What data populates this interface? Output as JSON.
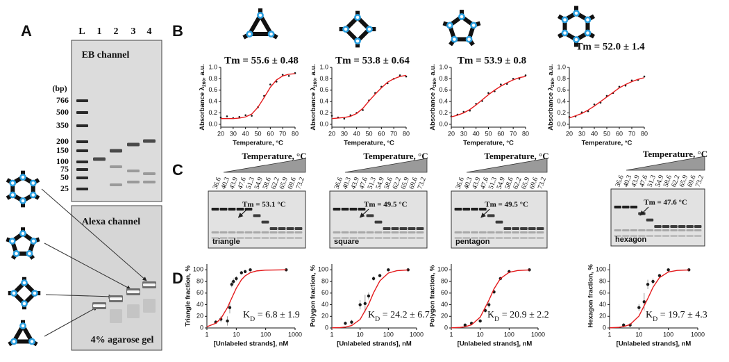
{
  "panel_labels": [
    "A",
    "B",
    "C",
    "D"
  ],
  "gel_a": {
    "lanes": [
      "L",
      "1",
      "2",
      "3",
      "4"
    ],
    "unit": "(bp)",
    "ladder": [
      766,
      500,
      350,
      200,
      150,
      100,
      75,
      50,
      25
    ],
    "top_label": "EB channel",
    "bottom_label": "Alexa channel",
    "footer": "4% agarose gel"
  },
  "chart_data": [
    {
      "type": "scatter",
      "title": "Tm = 55.6 ± 0.48",
      "x_label": "Temperature, °C",
      "y_label": [
        "Absorbance λ",
        "260",
        ", a.u."
      ],
      "xlim": [
        20,
        80
      ],
      "xticks": [
        20,
        30,
        40,
        50,
        60,
        70,
        80
      ],
      "ylim": [
        -0.05,
        1.0
      ],
      "yticks": [
        {
          "value": 0,
          "label": "0.0"
        },
        {
          "value": 0.2,
          "label": "0.2"
        },
        {
          "value": 0.4,
          "label": "0.4"
        },
        {
          "value": 0.6,
          "label": "0.6"
        },
        {
          "value": 0.8,
          "label": "0.8"
        },
        {
          "value": 1,
          "label": "1.0"
        }
      ],
      "x": [
        20,
        25,
        30,
        35,
        40,
        45,
        50,
        55,
        60,
        65,
        70,
        75,
        80
      ],
      "series": [
        {
          "color": "#1a1a1a",
          "style": "points",
          "values": [
            0.12,
            0.14,
            0.11,
            0.13,
            0.16,
            0.15,
            0.3,
            0.5,
            0.7,
            0.75,
            0.87,
            0.85,
            0.9
          ]
        },
        {
          "color": "#e41a1c",
          "style": "line",
          "values": [
            0.1,
            0.1,
            0.1,
            0.11,
            0.13,
            0.18,
            0.3,
            0.47,
            0.65,
            0.78,
            0.85,
            0.88,
            0.89
          ]
        }
      ]
    },
    {
      "type": "scatter",
      "title": "Tm = 53.8 ± 0.64",
      "x_label": "Temperature, °C",
      "y_label": [
        "Absorbance λ",
        "260",
        ", a.u."
      ],
      "xlim": [
        20,
        80
      ],
      "xticks": [
        20,
        30,
        40,
        50,
        60,
        70,
        80
      ],
      "ylim": [
        -0.05,
        1.0
      ],
      "yticks": [
        {
          "value": 0,
          "label": "0.0"
        },
        {
          "value": 0.2,
          "label": "0.2"
        },
        {
          "value": 0.4,
          "label": "0.4"
        },
        {
          "value": 0.6,
          "label": "0.6"
        },
        {
          "value": 0.8,
          "label": "0.8"
        },
        {
          "value": 1,
          "label": "1.0"
        }
      ],
      "x": [
        20,
        25,
        30,
        35,
        40,
        45,
        50,
        55,
        60,
        65,
        70,
        75,
        80
      ],
      "series": [
        {
          "color": "#1a1a1a",
          "style": "points",
          "values": [
            0.15,
            0.12,
            0.1,
            0.16,
            0.2,
            0.25,
            0.42,
            0.55,
            0.66,
            0.72,
            0.8,
            0.86,
            0.84
          ]
        },
        {
          "color": "#e41a1c",
          "style": "line",
          "values": [
            0.1,
            0.11,
            0.12,
            0.14,
            0.19,
            0.28,
            0.41,
            0.53,
            0.64,
            0.74,
            0.8,
            0.84,
            0.86
          ]
        }
      ]
    },
    {
      "type": "scatter",
      "title": "Tm = 53.9 ± 0.8",
      "x_label": "Temperature, °C",
      "y_label": [
        "Absorbance λ",
        "260",
        ", a.u."
      ],
      "xlim": [
        20,
        80
      ],
      "xticks": [
        20,
        30,
        40,
        50,
        60,
        70,
        80
      ],
      "ylim": [
        -0.05,
        1.0
      ],
      "yticks": [
        {
          "value": 0,
          "label": "0.0"
        },
        {
          "value": 0.2,
          "label": "0.2"
        },
        {
          "value": 0.4,
          "label": "0.4"
        },
        {
          "value": 0.6,
          "label": "0.6"
        },
        {
          "value": 0.8,
          "label": "0.8"
        },
        {
          "value": 1,
          "label": "1.0"
        }
      ],
      "x": [
        20,
        25,
        30,
        35,
        40,
        45,
        50,
        55,
        60,
        65,
        70,
        75,
        80
      ],
      "series": [
        {
          "color": "#1a1a1a",
          "style": "points",
          "values": [
            0.14,
            0.17,
            0.22,
            0.24,
            0.36,
            0.41,
            0.55,
            0.58,
            0.7,
            0.71,
            0.8,
            0.8,
            0.86
          ]
        },
        {
          "color": "#e41a1c",
          "style": "line",
          "values": [
            0.13,
            0.16,
            0.2,
            0.26,
            0.34,
            0.43,
            0.52,
            0.6,
            0.67,
            0.73,
            0.78,
            0.82,
            0.84
          ]
        }
      ]
    },
    {
      "type": "scatter",
      "title": "Tm = 52.0 ± 1.4",
      "x_label": "Temperature, °C",
      "y_label": [
        "Absorbance λ",
        "260",
        ", a.u."
      ],
      "xlim": [
        20,
        80
      ],
      "xticks": [
        20,
        30,
        40,
        50,
        60,
        70,
        80
      ],
      "ylim": [
        -0.05,
        1.0
      ],
      "yticks": [
        {
          "value": 0,
          "label": "0.0"
        },
        {
          "value": 0.2,
          "label": "0.2"
        },
        {
          "value": 0.4,
          "label": "0.4"
        },
        {
          "value": 0.6,
          "label": "0.6"
        },
        {
          "value": 0.8,
          "label": "0.8"
        },
        {
          "value": 1,
          "label": "1.0"
        }
      ],
      "x": [
        20,
        25,
        30,
        35,
        40,
        45,
        50,
        55,
        60,
        65,
        70,
        75,
        80
      ],
      "series": [
        {
          "color": "#1a1a1a",
          "style": "points",
          "values": [
            0.13,
            0.14,
            0.21,
            0.23,
            0.35,
            0.38,
            0.5,
            0.55,
            0.66,
            0.68,
            0.77,
            0.78,
            0.84
          ]
        },
        {
          "color": "#e41a1c",
          "style": "line",
          "values": [
            0.11,
            0.15,
            0.19,
            0.25,
            0.32,
            0.4,
            0.48,
            0.56,
            0.64,
            0.7,
            0.75,
            0.79,
            0.82
          ]
        }
      ]
    },
    {
      "type": "scatter",
      "log_x": true,
      "annotation": [
        "K",
        "D",
        " = 6.8 ± 1.9"
      ],
      "x_label": "[Unlabeled strands], nM",
      "y_label": "Triangle fraction, %",
      "xlim": [
        1,
        1000
      ],
      "xticks": [
        1,
        10,
        100,
        1000
      ],
      "ylim": [
        0,
        110
      ],
      "yticks": [
        0,
        20,
        40,
        60,
        80,
        100
      ],
      "series": [
        {
          "color": "#1a1a1a",
          "style": "points",
          "x": [
            2,
            3,
            5,
            6,
            7,
            8,
            10,
            15,
            20,
            30,
            500
          ],
          "values": [
            10,
            15,
            12,
            35,
            75,
            80,
            85,
            95,
            97,
            100,
            100
          ],
          "errors": [
            3,
            5,
            8,
            10,
            5,
            5,
            4,
            3,
            2,
            1,
            0
          ]
        },
        {
          "color": "#e41a1c",
          "style": "line",
          "x": [
            1,
            2,
            3,
            5,
            7,
            10,
            15,
            20,
            30,
            50,
            100,
            500
          ],
          "values": [
            2.1,
            8,
            16.3,
            35,
            51.4,
            68.4,
            83,
            89.6,
            95.1,
            98.2,
            99.5,
            100
          ]
        }
      ]
    },
    {
      "type": "scatter",
      "log_x": true,
      "annotation": [
        "K",
        "D",
        " = 24.2 ± 6.7"
      ],
      "x_label": "[Unlabeled strands], nM",
      "y_label": "Polygon fraction, %",
      "xlim": [
        1,
        1000
      ],
      "xticks": [
        1,
        10,
        100,
        1000
      ],
      "ylim": [
        0,
        110
      ],
      "yticks": [
        0,
        20,
        40,
        60,
        80,
        100
      ],
      "series": [
        {
          "color": "#1a1a1a",
          "style": "points",
          "x": [
            3,
            5,
            10,
            15,
            20,
            30,
            50,
            100,
            500
          ],
          "values": [
            8,
            10,
            40,
            42,
            55,
            85,
            90,
            100,
            100
          ],
          "errors": [
            3,
            4,
            8,
            15,
            6,
            4,
            3,
            1,
            0
          ]
        },
        {
          "color": "#e41a1c",
          "style": "line",
          "x": [
            1,
            2,
            3,
            5,
            10,
            20,
            30,
            50,
            100,
            200,
            500
          ],
          "values": [
            0.2,
            0.7,
            1.5,
            4.1,
            14.6,
            40.6,
            60.6,
            81,
            94.5,
            98.6,
            99.8
          ]
        }
      ]
    },
    {
      "type": "scatter",
      "log_x": true,
      "annotation": [
        "K",
        "D",
        " = 20.9 ± 2.2"
      ],
      "x_label": "[Unlabeled strands], nM",
      "y_label": "Polygon fraction, %",
      "xlim": [
        1,
        1000
      ],
      "xticks": [
        1,
        10,
        100,
        1000
      ],
      "ylim": [
        0,
        110
      ],
      "yticks": [
        0,
        20,
        40,
        60,
        80,
        100
      ],
      "series": [
        {
          "color": "#1a1a1a",
          "style": "points",
          "x": [
            3,
            5,
            10,
            15,
            20,
            30,
            50,
            100,
            500
          ],
          "values": [
            5,
            8,
            12,
            30,
            40,
            62,
            85,
            97,
            100
          ],
          "errors": [
            2,
            3,
            3,
            4,
            5,
            4,
            3,
            2,
            0
          ]
        },
        {
          "color": "#e41a1c",
          "style": "line",
          "x": [
            1,
            2,
            3,
            5,
            10,
            20,
            30,
            50,
            100,
            200,
            500
          ],
          "values": [
            0.2,
            0.9,
            2,
            5.4,
            18.6,
            47.8,
            67.3,
            85.1,
            95.8,
            98.9,
            99.8
          ]
        }
      ]
    },
    {
      "type": "scatter",
      "log_x": true,
      "annotation": [
        "K",
        "D",
        " = 19.7 ± 4.3"
      ],
      "x_label": "[Unlabeled strands], nM",
      "y_label": "Hexagon fraction, %",
      "xlim": [
        1,
        1000
      ],
      "xticks": [
        1,
        10,
        100,
        1000
      ],
      "ylim": [
        0,
        110
      ],
      "yticks": [
        0,
        20,
        40,
        60,
        80,
        100
      ],
      "series": [
        {
          "color": "#1a1a1a",
          "style": "points",
          "x": [
            3,
            5,
            10,
            15,
            20,
            30,
            50,
            100,
            500
          ],
          "values": [
            5,
            5,
            35,
            45,
            75,
            80,
            90,
            100,
            100
          ],
          "errors": [
            3,
            3,
            6,
            15,
            8,
            5,
            3,
            1,
            0
          ]
        },
        {
          "color": "#e41a1c",
          "style": "line",
          "x": [
            1,
            2,
            3,
            5,
            10,
            20,
            30,
            50,
            100,
            200,
            500
          ],
          "values": [
            0.3,
            1,
            2.3,
            6,
            20.5,
            50.8,
            69.9,
            86.6,
            96.3,
            99,
            99.8
          ]
        }
      ]
    }
  ],
  "gels_c": {
    "axis_label": "Temperature, °C",
    "temperatures": [
      36.6,
      40.3,
      43.9,
      47.6,
      51.3,
      54.9,
      58.6,
      62.2,
      65.9,
      69.6,
      73.2
    ],
    "gels": [
      {
        "tm": "Tm = 53.1 °C",
        "name": "triangle"
      },
      {
        "tm": "Tm = 49.5 °C",
        "name": "square"
      },
      {
        "tm": "Tm = 49.5 °C",
        "name": "pentagon"
      },
      {
        "tm": "Tm = 47.6 °C",
        "name": "hexagon"
      }
    ]
  }
}
